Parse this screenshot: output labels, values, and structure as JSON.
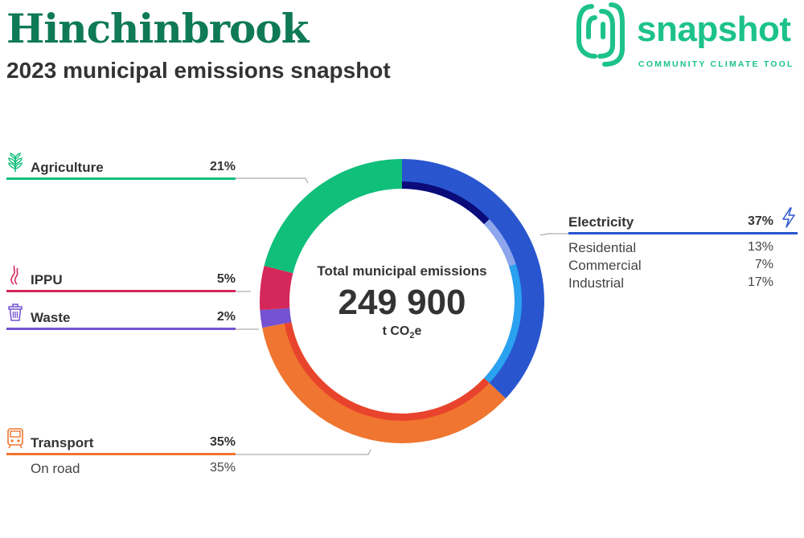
{
  "header": {
    "title": "Hinchinbrook",
    "subtitle": "2023 municipal emissions snapshot"
  },
  "logo": {
    "word": "snapshot",
    "tagline": "COMMUNITY CLIMATE TOOL",
    "color": "#1cc28a"
  },
  "center": {
    "label": "Total municipal emissions",
    "value": "249 900",
    "unit_prefix": "t CO",
    "unit_sub": "2",
    "unit_suffix": "e"
  },
  "sectors": {
    "electricity": {
      "name": "Electricity",
      "pct": "37%",
      "color": "#2956cf",
      "icon": "lightning-icon",
      "subs": [
        {
          "name": "Residential",
          "pct": "13%"
        },
        {
          "name": "Commercial",
          "pct": "7%"
        },
        {
          "name": "Industrial",
          "pct": "17%"
        }
      ]
    },
    "agriculture": {
      "name": "Agriculture",
      "pct": "21%",
      "color": "#0fbf7a",
      "icon": "plant-icon"
    },
    "ippu": {
      "name": "IPPU",
      "pct": "5%",
      "color": "#d4285a",
      "icon": "smoke-icon"
    },
    "waste": {
      "name": "Waste",
      "pct": "2%",
      "color": "#7452d1",
      "icon": "bin-icon"
    },
    "transport": {
      "name": "Transport",
      "pct": "35%",
      "color": "#f07530",
      "icon": "train-icon",
      "subs": [
        {
          "name": "On road",
          "pct": "35%"
        }
      ]
    }
  },
  "chart_data": {
    "type": "pie",
    "title": "Total municipal emissions",
    "total": 249900,
    "unit": "t CO2e",
    "series": [
      {
        "name": "Electricity",
        "value": 37,
        "color": "#2956cf",
        "subs": [
          {
            "name": "Residential",
            "value": 13,
            "color": "#0b0b7a"
          },
          {
            "name": "Commercial",
            "value": 7,
            "color": "#8ea6ec"
          },
          {
            "name": "Industrial",
            "value": 17,
            "color": "#2aa2f0"
          }
        ]
      },
      {
        "name": "Transport",
        "value": 35,
        "color": "#f07530",
        "subs": [
          {
            "name": "On road",
            "value": 35,
            "color": "#e8432c"
          }
        ]
      },
      {
        "name": "Waste",
        "value": 2,
        "color": "#7452d1"
      },
      {
        "name": "IPPU",
        "value": 5,
        "color": "#d4285a"
      },
      {
        "name": "Agriculture",
        "value": 21,
        "color": "#0fbf7a"
      }
    ]
  }
}
